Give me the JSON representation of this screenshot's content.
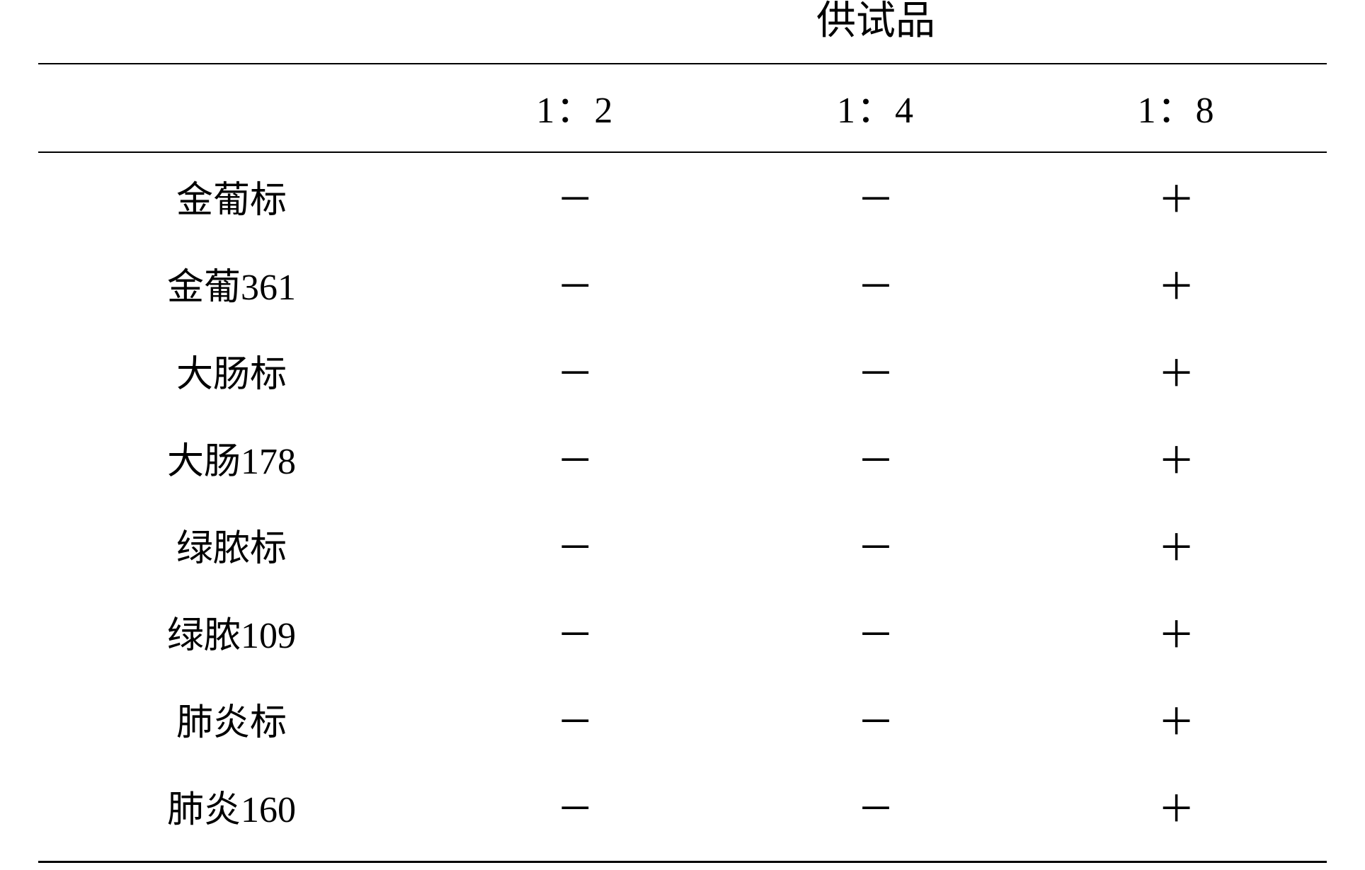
{
  "table": {
    "header": {
      "title": "供试品",
      "dilutions": [
        "1：2",
        "1：4",
        "1：8"
      ]
    },
    "rows": [
      {
        "label": "金葡标",
        "values": [
          "－",
          "－",
          "＋"
        ]
      },
      {
        "label": "金葡361",
        "values": [
          "－",
          "－",
          "＋"
        ]
      },
      {
        "label": "大肠标",
        "values": [
          "－",
          "－",
          "＋"
        ]
      },
      {
        "label": "大肠178",
        "values": [
          "－",
          "－",
          "＋"
        ]
      },
      {
        "label": "绿脓标",
        "values": [
          "－",
          "－",
          "＋"
        ]
      },
      {
        "label": "绿脓109",
        "values": [
          "－",
          "－",
          "＋"
        ]
      },
      {
        "label": "肺炎标",
        "values": [
          "－",
          "－",
          "＋"
        ]
      },
      {
        "label": "肺炎160",
        "values": [
          "－",
          "－",
          "＋"
        ]
      }
    ],
    "styling": {
      "background_color": "#ffffff",
      "text_color": "#000000",
      "border_color": "#000000",
      "top_border_width": 3,
      "mid_border_width": 2,
      "bottom_border_width": 3,
      "font_family": "SimSun",
      "header_fontsize": 56,
      "body_fontsize": 52,
      "column_widths": [
        "30%",
        "23.33%",
        "23.33%",
        "23.33%"
      ],
      "text_align": "center"
    }
  }
}
